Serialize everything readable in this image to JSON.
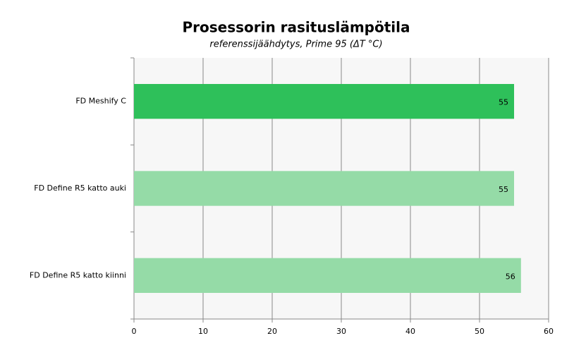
{
  "chart_data": {
    "type": "bar",
    "orientation": "horizontal",
    "title": "Prosessorin rasituslämpötila",
    "subtitle": "referenssijäähdytys, Prime 95 (ΔT °C)",
    "categories": [
      "FD Meshify C",
      "FD Define R5 katto auki",
      "FD Define R5 katto kiinni"
    ],
    "values": [
      55,
      55,
      56
    ],
    "colors": [
      "#2ec05a",
      "#95dba7",
      "#95dba7"
    ],
    "xlim": [
      0,
      60
    ],
    "xticks": [
      0,
      10,
      20,
      30,
      40,
      50,
      60
    ],
    "grid": true
  }
}
